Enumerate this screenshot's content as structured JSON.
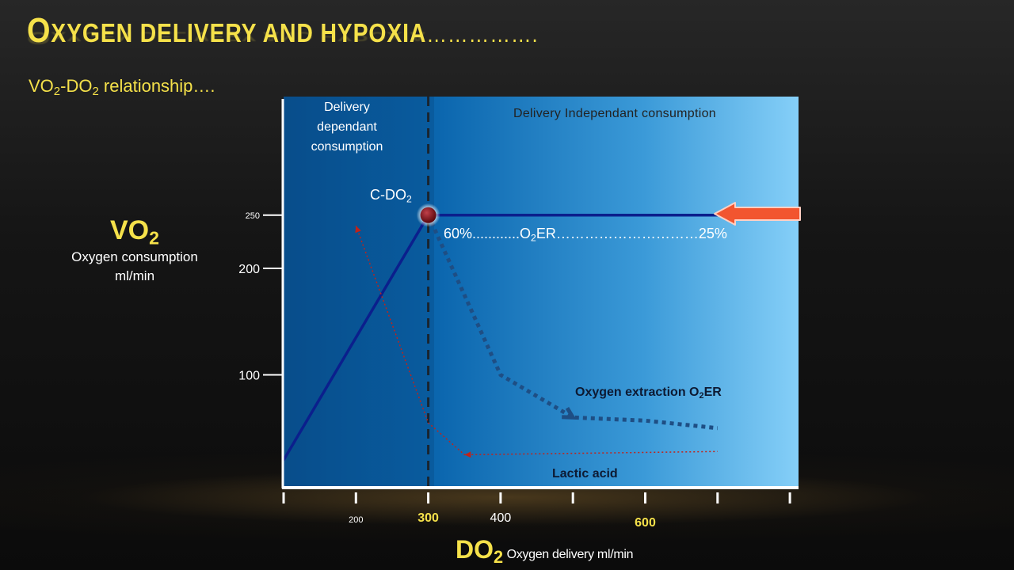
{
  "header": {
    "title_first": "O",
    "title_rest": "XYGEN DELIVERY AND HYPOXIA",
    "title_trail": "…………….",
    "subtitle_a": "VO",
    "subtitle_b": "-DO",
    "subtitle_c": " relationship….",
    "subscript": "2"
  },
  "axis": {
    "y_big_a": "VO",
    "y_sub": "2",
    "y_small_1": "Oxygen consumption",
    "y_small_2": "ml/min",
    "x_big_a": "DO",
    "x_sub": "2",
    "x_small": "Oxygen delivery ml/min"
  },
  "regions": {
    "dependent_1": "Delivery",
    "dependent_2": "dependant",
    "dependent_3": "consumption",
    "independent": "Delivery Independant consumption"
  },
  "annotations": {
    "cdo2_a": "C-DO",
    "cdo2_sub": "2",
    "ratio_a": "60%............O",
    "ratio_sub": "2",
    "ratio_b": "ER…………………………25%",
    "o2er_a": "Oxygen extraction O",
    "o2er_sub": "2",
    "o2er_b": "ER",
    "lactic": "Lactic acid"
  },
  "colors": {
    "title": "#f5e14a",
    "panel_left": "#0b5fa3",
    "panel_right": "#7fcbf7",
    "vo2_line": "#0b1f8c",
    "o2er_line": "#1e4e84",
    "lactic_line": "#c0231a",
    "arrow_fill": "#f2552f",
    "arrow_stroke": "#ffd0c4",
    "point": "#7a0e14"
  },
  "chart_data": {
    "type": "line",
    "title": "",
    "xlabel": "DO2 Oxygen delivery ml/min",
    "ylabel": "VO2 Oxygen consumption ml/min",
    "critical_do2": 300,
    "x_ticks": [
      {
        "label": "200",
        "value": 200,
        "color": "#ffffff",
        "size": 11
      },
      {
        "label": "300",
        "value": 300,
        "color": "#f5e14a",
        "size": 16
      },
      {
        "label": "400",
        "value": 400,
        "color": "#ffffff",
        "size": 16
      },
      {
        "label": "600",
        "value": 600,
        "color": "#f5e14a",
        "size": 16
      }
    ],
    "y_ticks": [
      {
        "label": "250",
        "value": 250,
        "size": 11
      },
      {
        "label": "200",
        "value": 200,
        "size": 16
      },
      {
        "label": "100",
        "value": 100,
        "size": 16
      }
    ],
    "series": [
      {
        "name": "VO2",
        "style": "solid",
        "points": [
          [
            100,
            20
          ],
          [
            300,
            250
          ],
          [
            700,
            250
          ]
        ]
      },
      {
        "name": "Oxygen extraction O2ER",
        "style": "dotted-thick",
        "points": [
          [
            300,
            250
          ],
          [
            400,
            100
          ],
          [
            500,
            60
          ],
          [
            600,
            57
          ],
          [
            700,
            50
          ]
        ]
      },
      {
        "name": "Lactic acid",
        "style": "dotted-red",
        "points": [
          [
            200,
            240
          ],
          [
            300,
            55
          ],
          [
            350,
            25
          ],
          [
            700,
            28
          ]
        ]
      }
    ]
  }
}
